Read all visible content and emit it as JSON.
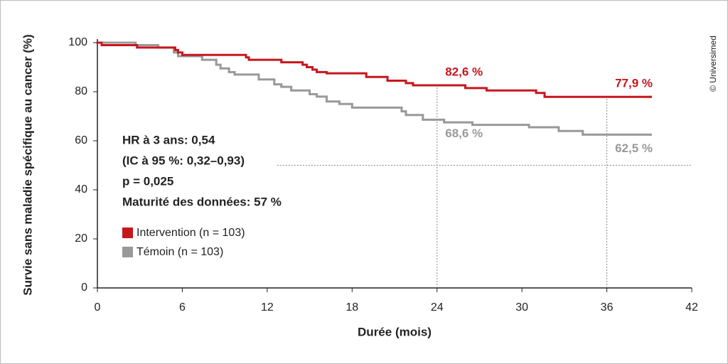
{
  "chart_data": {
    "type": "step",
    "xlabel": "Durée (mois)",
    "ylabel": "Survie sans maladie spécifique au cancer (%)",
    "xlim": [
      0,
      42
    ],
    "xticks": [
      0,
      6,
      12,
      18,
      24,
      30,
      36,
      42
    ],
    "ylim": [
      0,
      100
    ],
    "yticks": [
      0,
      20,
      40,
      60,
      80,
      100
    ],
    "annotations": [
      "HR à 3 ans: 0,54",
      "(IC à 95 %: 0,32–0,93)",
      "p = 0,025",
      "Maturité des données: 57 %"
    ],
    "credit": "© Universimed",
    "reference_line": {
      "y": 50,
      "x": [
        12.7,
        42
      ]
    },
    "series": [
      {
        "name": "Intervention (n = 103)",
        "color": "#c8161d",
        "x": [
          0,
          0.3,
          2.8,
          5.5,
          5.7,
          6,
          10.5,
          10.7,
          13,
          14.5,
          14.8,
          15.2,
          15.5,
          16.2,
          19,
          20.5,
          21.8,
          22.3,
          26,
          27.5,
          31,
          31.6,
          39.1
        ],
        "values": [
          100,
          99,
          98,
          97,
          96,
          95,
          94,
          93,
          92,
          91,
          90,
          89,
          88,
          87.5,
          86,
          84.5,
          83.5,
          82.6,
          81.5,
          80.5,
          79.5,
          77.9,
          77.9
        ],
        "landmarks": {
          "x": [
            24,
            36
          ],
          "values": [
            82.6,
            77.9
          ],
          "value_labels": [
            "82,6 %",
            "77,9 %"
          ]
        }
      },
      {
        "name": "Témoin (n = 103)",
        "color": "#999999",
        "x": [
          0,
          2.7,
          4.3,
          5.4,
          5.7,
          7.4,
          8.4,
          8.7,
          9.3,
          9.7,
          11.4,
          12.5,
          13,
          13.7,
          15,
          15.5,
          16.2,
          17.1,
          18,
          21.5,
          21.8,
          23,
          24.5,
          26.5,
          30.5,
          32.6,
          34.3,
          39.1
        ],
        "values": [
          100,
          99,
          98,
          96,
          94.5,
          93,
          91,
          89.5,
          88,
          87,
          85,
          83,
          82,
          80.5,
          79,
          78,
          76,
          75,
          73.5,
          72,
          70.5,
          68.6,
          67.5,
          66.5,
          65.5,
          64,
          62.5,
          62.5
        ],
        "landmarks": {
          "x": [
            24,
            36
          ],
          "values": [
            68.6,
            62.5
          ],
          "value_labels": [
            "68,6 %",
            "62,5 %"
          ]
        }
      }
    ]
  }
}
